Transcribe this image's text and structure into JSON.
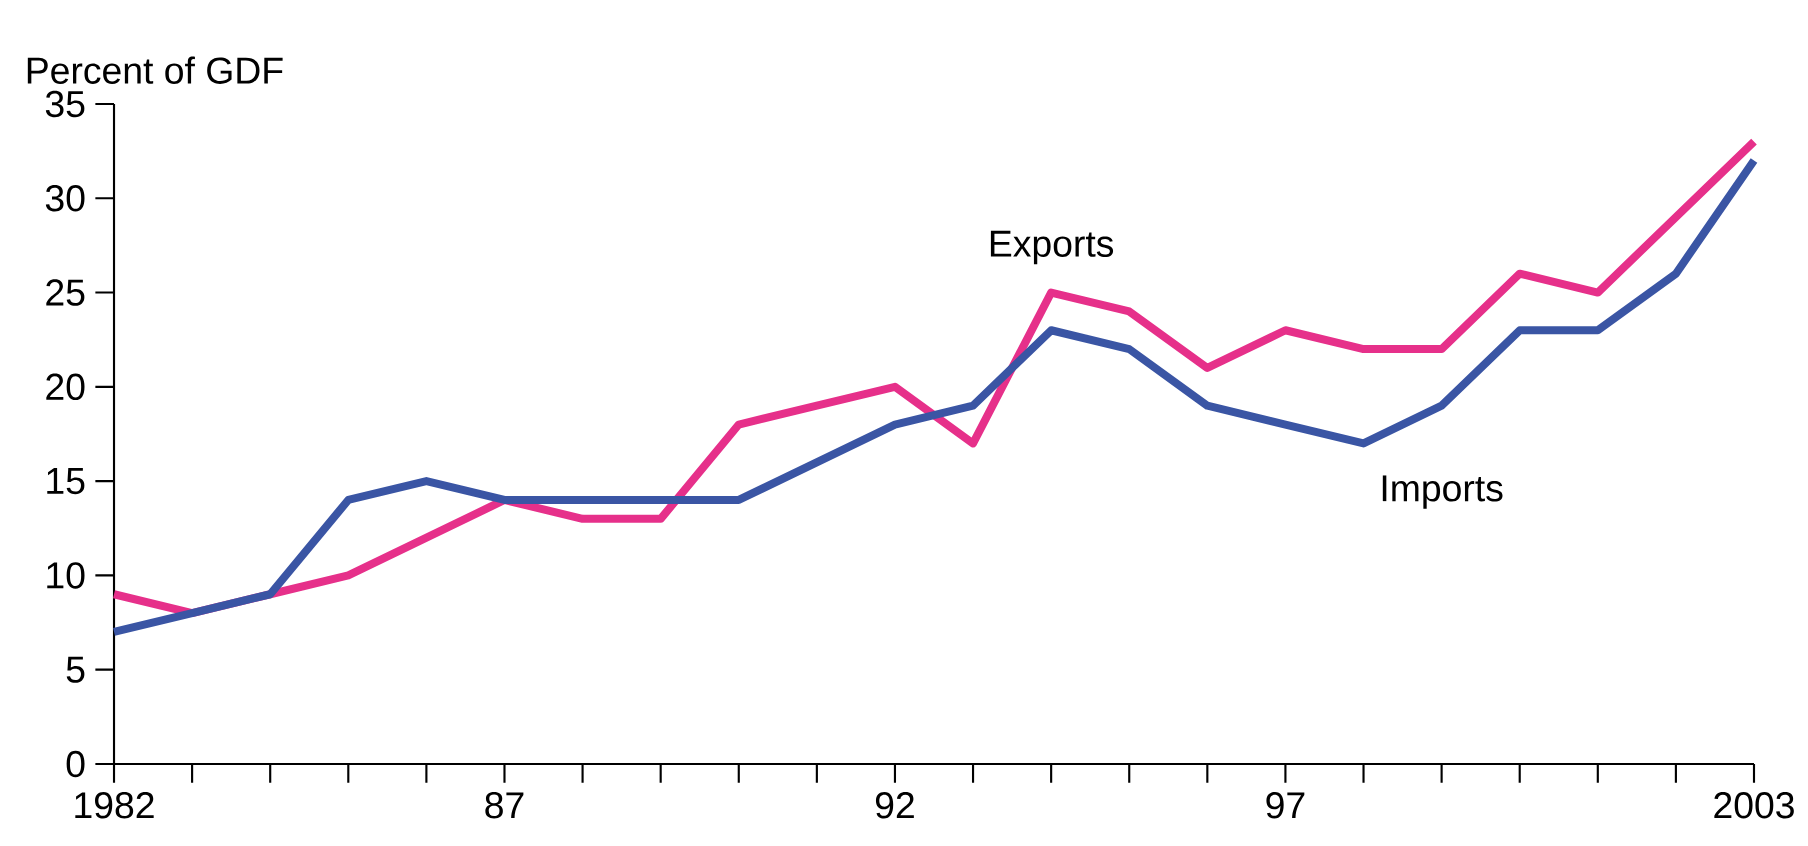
{
  "chart_data": {
    "type": "line",
    "ylabel": "Percent of GDF",
    "x": [
      1982,
      1983,
      1984,
      1985,
      1986,
      1987,
      1988,
      1989,
      1990,
      1991,
      1992,
      1993,
      1994,
      1995,
      1996,
      1997,
      1998,
      1999,
      2000,
      2001,
      2002,
      2003
    ],
    "series": [
      {
        "name": "Exports",
        "color": "#e6308a",
        "values": [
          9,
          8,
          9,
          10,
          12,
          14,
          13,
          13,
          18,
          19,
          20,
          17,
          25,
          24,
          21,
          23,
          22,
          22,
          26,
          25,
          29,
          33
        ]
      },
      {
        "name": "Imports",
        "color": "#3a55a4",
        "values": [
          7,
          8,
          9,
          14,
          15,
          14,
          14,
          14,
          14,
          16,
          18,
          19,
          23,
          22,
          19,
          18,
          17,
          19,
          23,
          23,
          26,
          32
        ]
      }
    ],
    "xlim": [
      1982,
      2003
    ],
    "xticks": [
      1982,
      {
        "value": 1983,
        "label": null
      },
      {
        "value": 1984,
        "label": null
      },
      {
        "value": 1985,
        "label": null
      },
      {
        "value": 1986,
        "label": null
      },
      {
        "value": 1987,
        "label": "87"
      },
      {
        "value": 1988,
        "label": null
      },
      {
        "value": 1989,
        "label": null
      },
      {
        "value": 1990,
        "label": null
      },
      {
        "value": 1991,
        "label": null
      },
      {
        "value": 1992,
        "label": "92"
      },
      {
        "value": 1993,
        "label": null
      },
      {
        "value": 1994,
        "label": null
      },
      {
        "value": 1995,
        "label": null
      },
      {
        "value": 1996,
        "label": null
      },
      {
        "value": 1997,
        "label": "97"
      },
      {
        "value": 1998,
        "label": null
      },
      {
        "value": 1999,
        "label": null
      },
      {
        "value": 2000,
        "label": null
      },
      {
        "value": 2001,
        "label": null
      },
      {
        "value": 2002,
        "label": null
      },
      {
        "value": 2003,
        "label": "2003"
      }
    ],
    "ylim": [
      0,
      35
    ],
    "yticks": [
      0,
      5,
      10,
      15,
      20,
      25,
      30,
      35
    ]
  }
}
